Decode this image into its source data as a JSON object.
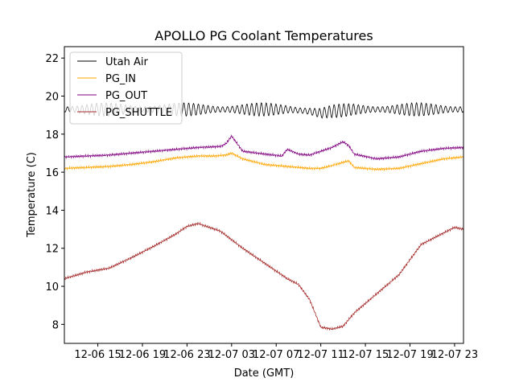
{
  "chart_data": {
    "type": "line",
    "title": "APOLLO PG Coolant Temperatures",
    "xlabel": "Date (GMT)",
    "ylabel": "Temperature (C)",
    "xlim": [
      12.0,
      47.8
    ],
    "ylim": [
      7.0,
      22.6
    ],
    "x_units": "hours since 2023-12-06 00:00 GMT",
    "x_ticks": [
      {
        "value": 15,
        "label": "12-06 15"
      },
      {
        "value": 19,
        "label": "12-06 19"
      },
      {
        "value": 23,
        "label": "12-06 23"
      },
      {
        "value": 27,
        "label": "12-07 03"
      },
      {
        "value": 31,
        "label": "12-07 07"
      },
      {
        "value": 35,
        "label": "12-07 11"
      },
      {
        "value": 39,
        "label": "12-07 15"
      },
      {
        "value": 43,
        "label": "12-07 19"
      },
      {
        "value": 47,
        "label": "12-07 23"
      }
    ],
    "y_ticks": [
      {
        "value": 8,
        "label": "8"
      },
      {
        "value": 10,
        "label": "10"
      },
      {
        "value": 12,
        "label": "12"
      },
      {
        "value": 14,
        "label": "14"
      },
      {
        "value": 16,
        "label": "16"
      },
      {
        "value": 18,
        "label": "18"
      },
      {
        "value": 20,
        "label": "20"
      },
      {
        "value": 22,
        "label": "22"
      }
    ],
    "legend_position": "top-left",
    "series": [
      {
        "name": "Utah Air",
        "color": "#000000",
        "x": [
          12.0,
          14.0,
          16.0,
          18.0,
          20.0,
          22.0,
          24.0,
          26.0,
          28.0,
          30.0,
          32.0,
          34.0,
          35.0,
          36.0,
          38.0,
          40.0,
          42.0,
          44.0,
          46.0,
          47.8
        ],
        "values": [
          19.3,
          19.3,
          19.3,
          19.3,
          19.3,
          19.3,
          19.3,
          19.3,
          19.3,
          19.3,
          19.3,
          19.2,
          19.1,
          19.2,
          19.3,
          19.3,
          19.3,
          19.3,
          19.3,
          19.3
        ],
        "oscillation_amplitude": 0.35
      },
      {
        "name": "PG_IN",
        "color": "#ffa500",
        "x": [
          12.0,
          14.0,
          16.0,
          18.0,
          20.0,
          22.0,
          24.0,
          25.5,
          26.5,
          27.0,
          28.0,
          30.0,
          32.0,
          34.0,
          35.0,
          36.0,
          37.5,
          38.0,
          40.0,
          42.0,
          44.0,
          46.0,
          47.8
        ],
        "values": [
          16.2,
          16.25,
          16.3,
          16.4,
          16.55,
          16.75,
          16.85,
          16.85,
          16.9,
          17.0,
          16.7,
          16.4,
          16.3,
          16.2,
          16.2,
          16.35,
          16.6,
          16.25,
          16.15,
          16.2,
          16.45,
          16.7,
          16.8
        ]
      },
      {
        "name": "PG_OUT",
        "color": "#800080",
        "x": [
          12.0,
          14.0,
          16.0,
          18.0,
          20.0,
          22.0,
          24.0,
          26.0,
          26.5,
          27.0,
          27.5,
          28.0,
          30.0,
          31.5,
          32.0,
          33.0,
          34.0,
          35.0,
          36.0,
          37.0,
          37.5,
          38.0,
          40.0,
          42.0,
          44.0,
          46.0,
          47.8
        ],
        "values": [
          16.8,
          16.85,
          16.9,
          17.0,
          17.1,
          17.2,
          17.3,
          17.35,
          17.5,
          17.9,
          17.5,
          17.1,
          16.95,
          16.85,
          17.2,
          16.95,
          16.9,
          17.1,
          17.3,
          17.6,
          17.4,
          16.95,
          16.7,
          16.8,
          17.1,
          17.25,
          17.3
        ]
      },
      {
        "name": "PG_SHUTTLE",
        "color": "#a52a2a",
        "x": [
          12.0,
          14.0,
          16.0,
          18.0,
          20.0,
          22.0,
          23.0,
          24.0,
          26.0,
          28.0,
          30.0,
          32.0,
          33.0,
          34.0,
          35.0,
          36.0,
          37.0,
          38.0,
          40.0,
          42.0,
          44.0,
          46.0,
          47.0,
          47.8
        ],
        "values": [
          10.4,
          10.75,
          10.95,
          11.5,
          12.1,
          12.75,
          13.15,
          13.3,
          12.9,
          12.0,
          11.2,
          10.4,
          10.1,
          9.3,
          7.85,
          7.75,
          7.9,
          8.6,
          9.6,
          10.6,
          12.2,
          12.8,
          13.1,
          13.0
        ]
      }
    ]
  }
}
